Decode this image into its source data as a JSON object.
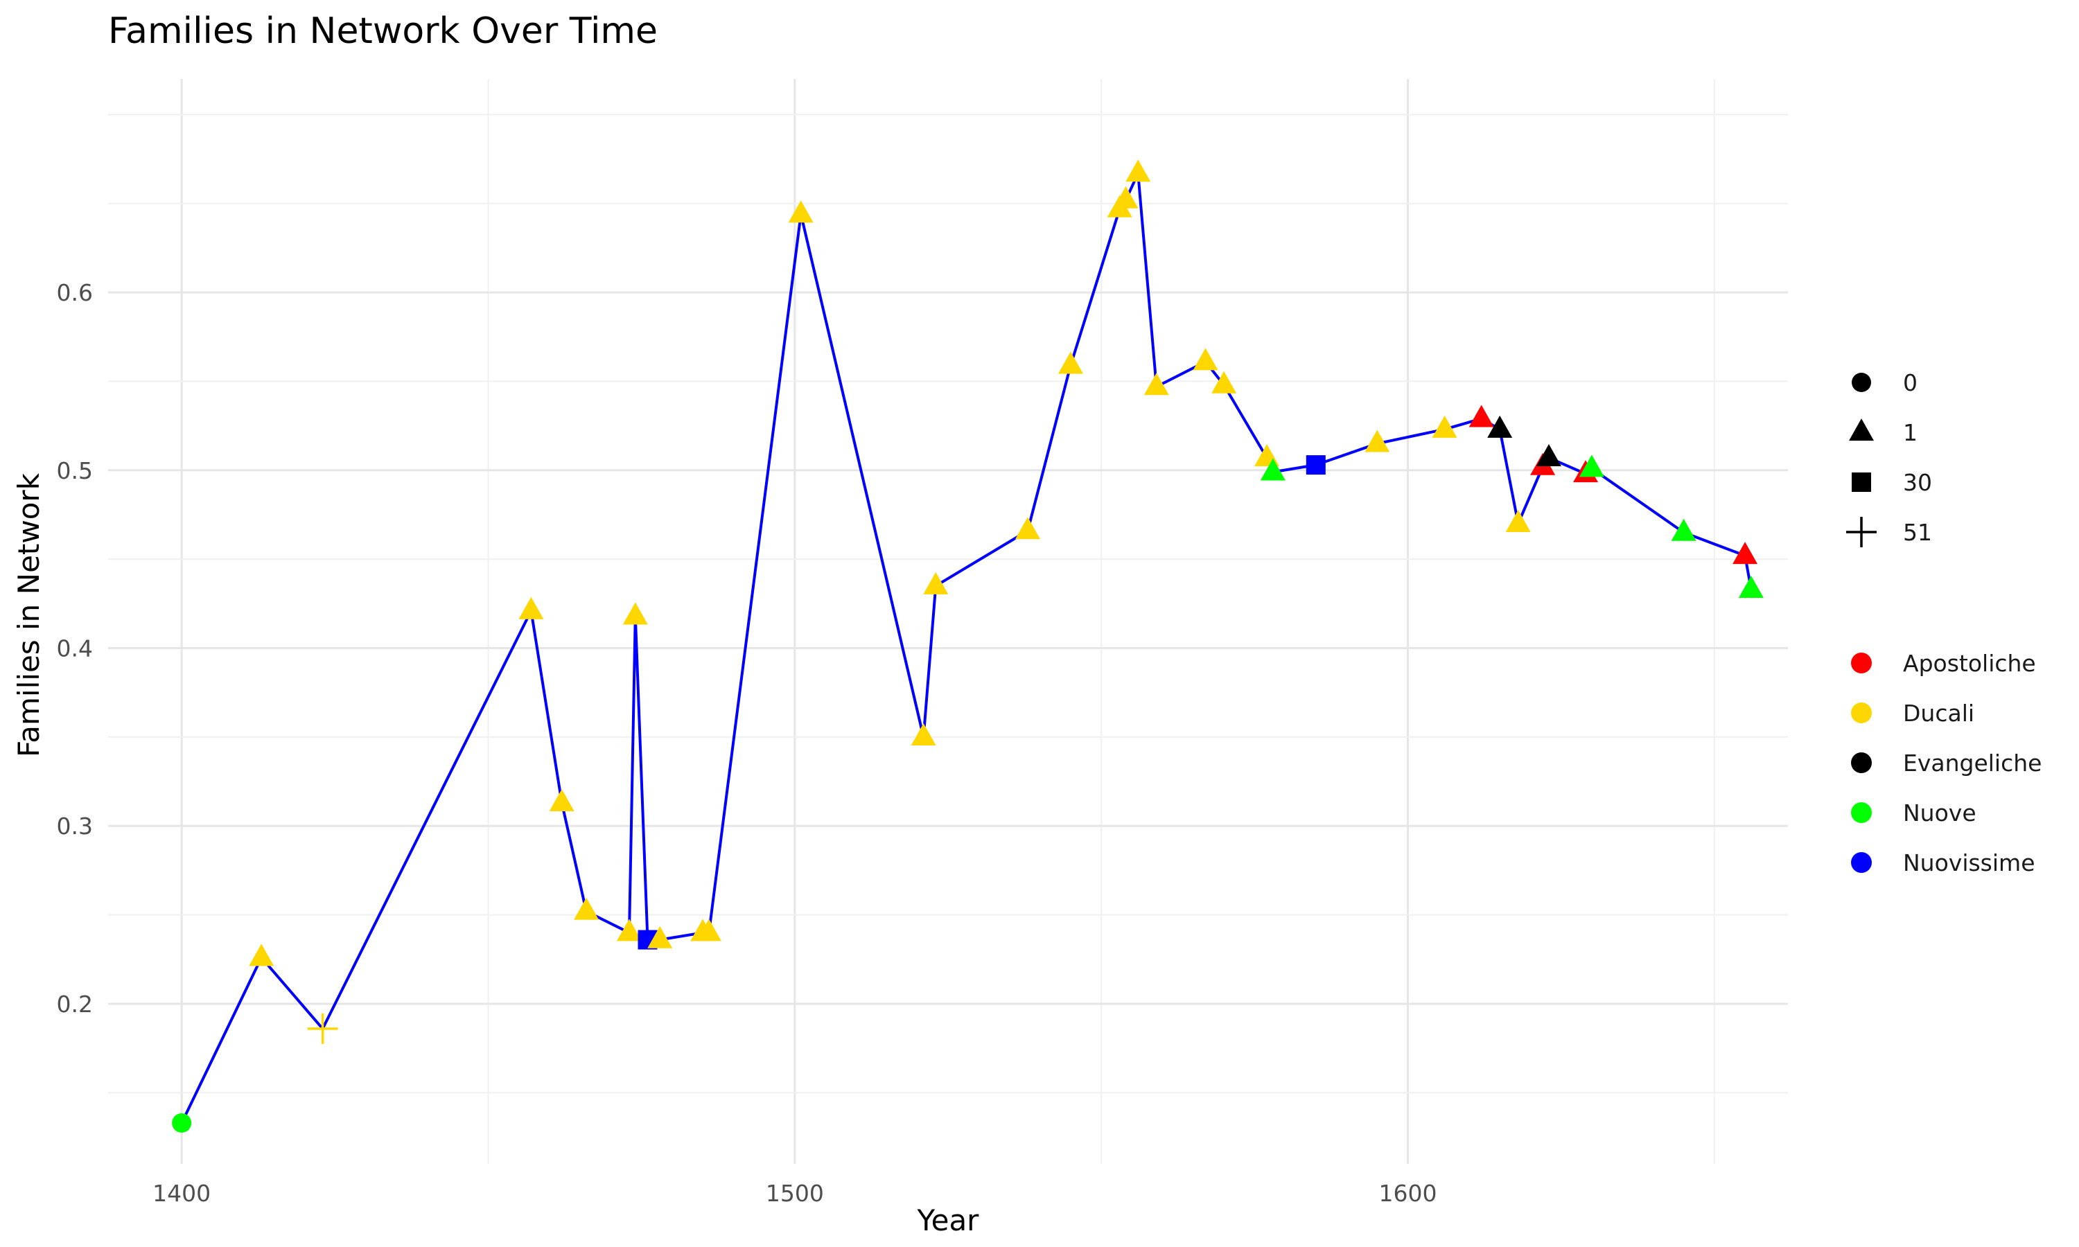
{
  "chart_data": {
    "type": "line",
    "title": "Families in Network Over Time",
    "xlabel": "Year",
    "ylabel": "Families in Network",
    "xlim": [
      1388,
      1662
    ],
    "ylim": [
      0.11,
      0.72
    ],
    "x_ticks": [
      1400,
      1500,
      1600
    ],
    "x_tick_labels": [
      "1400",
      "1500",
      "1600"
    ],
    "y_ticks": [
      0.2,
      0.3,
      0.4,
      0.5,
      0.6
    ],
    "y_tick_labels": [
      "0.2",
      "0.3",
      "0.4",
      "0.5",
      "0.6"
    ],
    "line_color": "#0000ff",
    "grid": true,
    "legend_position": "right",
    "shape_legend": [
      {
        "key": "0",
        "label": "0",
        "symbol": "circle"
      },
      {
        "key": "1",
        "label": "1",
        "symbol": "triangle"
      },
      {
        "key": "30",
        "label": "30",
        "symbol": "square"
      },
      {
        "key": "51",
        "label": "51",
        "symbol": "plus"
      }
    ],
    "color_legend": [
      {
        "key": "Apostoliche",
        "label": "Apostoliche",
        "color": "#ff0000"
      },
      {
        "key": "Ducali",
        "label": "Ducali",
        "color": "#ffd700"
      },
      {
        "key": "Evangeliche",
        "label": "Evangeliche",
        "color": "#000000"
      },
      {
        "key": "Nuove",
        "label": "Nuove",
        "color": "#00ff00"
      },
      {
        "key": "Nuovissime",
        "label": "Nuovissime",
        "color": "#0000ff"
      }
    ],
    "points": [
      {
        "x": 1400,
        "y": 0.133,
        "shape": "0",
        "group": "Nuove"
      },
      {
        "x": 1413,
        "y": 0.226,
        "shape": "1",
        "group": "Ducali"
      },
      {
        "x": 1423,
        "y": 0.186,
        "shape": "51",
        "group": "Ducali"
      },
      {
        "x": 1457,
        "y": 0.421,
        "shape": "1",
        "group": "Ducali"
      },
      {
        "x": 1462,
        "y": 0.313,
        "shape": "1",
        "group": "Ducali"
      },
      {
        "x": 1466,
        "y": 0.252,
        "shape": "1",
        "group": "Ducali"
      },
      {
        "x": 1473,
        "y": 0.24,
        "shape": "1",
        "group": "Ducali"
      },
      {
        "x": 1474,
        "y": 0.418,
        "shape": "1",
        "group": "Ducali"
      },
      {
        "x": 1476,
        "y": 0.236,
        "shape": "30",
        "group": "Nuovissime"
      },
      {
        "x": 1478,
        "y": 0.236,
        "shape": "1",
        "group": "Ducali"
      },
      {
        "x": 1485,
        "y": 0.24,
        "shape": "1",
        "group": "Ducali"
      },
      {
        "x": 1486,
        "y": 0.24,
        "shape": "1",
        "group": "Ducali"
      },
      {
        "x": 1501,
        "y": 0.644,
        "shape": "1",
        "group": "Ducali"
      },
      {
        "x": 1521,
        "y": 0.35,
        "shape": "1",
        "group": "Ducali"
      },
      {
        "x": 1523,
        "y": 0.435,
        "shape": "1",
        "group": "Ducali"
      },
      {
        "x": 1538,
        "y": 0.466,
        "shape": "1",
        "group": "Ducali"
      },
      {
        "x": 1545,
        "y": 0.559,
        "shape": "1",
        "group": "Ducali"
      },
      {
        "x": 1553,
        "y": 0.647,
        "shape": "1",
        "group": "Ducali"
      },
      {
        "x": 1554,
        "y": 0.652,
        "shape": "1",
        "group": "Ducali"
      },
      {
        "x": 1556,
        "y": 0.667,
        "shape": "1",
        "group": "Ducali"
      },
      {
        "x": 1559,
        "y": 0.547,
        "shape": "1",
        "group": "Ducali"
      },
      {
        "x": 1567,
        "y": 0.561,
        "shape": "1",
        "group": "Ducali"
      },
      {
        "x": 1570,
        "y": 0.548,
        "shape": "1",
        "group": "Ducali"
      },
      {
        "x": 1577,
        "y": 0.507,
        "shape": "1",
        "group": "Ducali"
      },
      {
        "x": 1578,
        "y": 0.499,
        "shape": "1",
        "group": "Nuove"
      },
      {
        "x": 1585,
        "y": 0.503,
        "shape": "30",
        "group": "Nuovissime"
      },
      {
        "x": 1595,
        "y": 0.515,
        "shape": "1",
        "group": "Ducali"
      },
      {
        "x": 1606,
        "y": 0.523,
        "shape": "1",
        "group": "Ducali"
      },
      {
        "x": 1612,
        "y": 0.529,
        "shape": "1",
        "group": "Apostoliche"
      },
      {
        "x": 1615,
        "y": 0.523,
        "shape": "1",
        "group": "Evangeliche"
      },
      {
        "x": 1618,
        "y": 0.47,
        "shape": "1",
        "group": "Ducali"
      },
      {
        "x": 1622,
        "y": 0.502,
        "shape": "1",
        "group": "Apostoliche"
      },
      {
        "x": 1623,
        "y": 0.507,
        "shape": "1",
        "group": "Evangeliche"
      },
      {
        "x": 1629,
        "y": 0.498,
        "shape": "1",
        "group": "Apostoliche"
      },
      {
        "x": 1630,
        "y": 0.501,
        "shape": "1",
        "group": "Nuove"
      },
      {
        "x": 1645,
        "y": 0.465,
        "shape": "1",
        "group": "Nuove"
      },
      {
        "x": 1655,
        "y": 0.452,
        "shape": "1",
        "group": "Apostoliche"
      },
      {
        "x": 1656,
        "y": 0.433,
        "shape": "1",
        "group": "Nuove"
      }
    ]
  }
}
